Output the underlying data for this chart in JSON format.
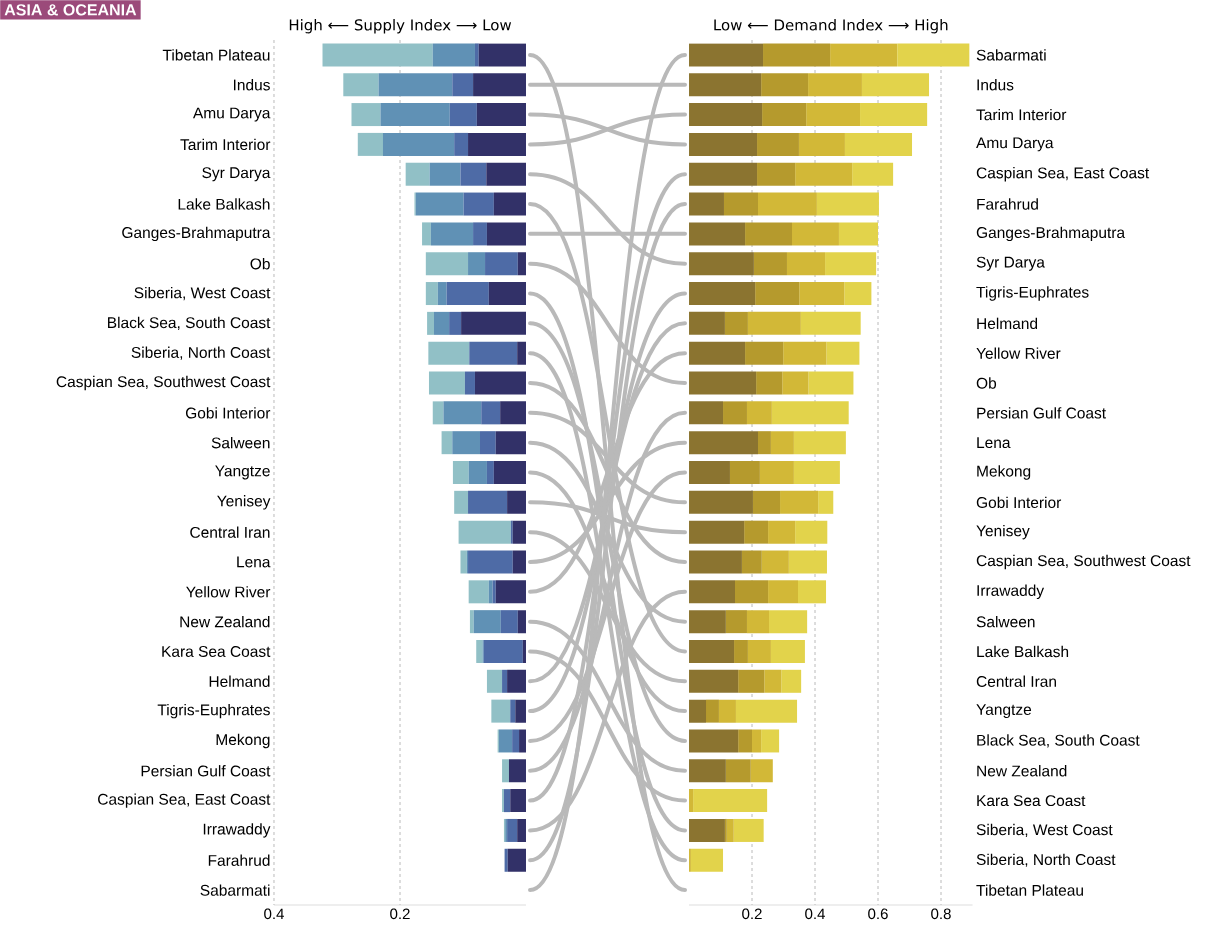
{
  "chart_data": [
    {
      "type": "bar",
      "orientation": "horizontal",
      "stacked": true,
      "title": "ASIA & OCEANIA",
      "xlabel": "High ⟵ Supply Index ⟶ Low",
      "categories": [
        "Tibetan Plateau",
        "Indus",
        "Amu Darya",
        "Tarim Interior",
        "Syr Darya",
        "Lake Balkash",
        "Ganges-Brahmaputra",
        "Ob",
        "Siberia, West Coast",
        "Black Sea, South Coast",
        "Siberia, North Coast",
        "Caspian Sea, Southwest Coast",
        "Gobi Interior",
        "Salween",
        "Yangtze",
        "Yenisey",
        "Central Iran",
        "Lena",
        "Yellow River",
        "New Zealand",
        "Kara Sea Coast",
        "Helmand",
        "Tigris-Euphrates",
        "Mekong",
        "Persian Gulf Coast",
        "Caspian Sea, East Coast",
        "Irrawaddy",
        "Farahrud",
        "Sabarmati"
      ],
      "series": [
        {
          "color": "#323168",
          "values": [
            0.075,
            0.084,
            0.078,
            0.092,
            0.063,
            0.051,
            0.062,
            0.013,
            0.059,
            0.103,
            0.014,
            0.081,
            0.041,
            0.048,
            0.051,
            0.03,
            0.021,
            0.021,
            0.048,
            0.013,
            0.005,
            0.03,
            0.017,
            0.011,
            0.027,
            0.025,
            0.014,
            0.029,
            0
          ]
        },
        {
          "color": "#4e6ba6",
          "values": [
            0.006,
            0.033,
            0.043,
            0.022,
            0.041,
            0.048,
            0.022,
            0.052,
            0.067,
            0.019,
            0.076,
            0.016,
            0.03,
            0.025,
            0.011,
            0.062,
            0.003,
            0.071,
            0.005,
            0.027,
            0.062,
            0.008,
            0.008,
            0.011,
            0,
            0.01,
            0.016,
            0.005,
            0
          ]
        },
        {
          "color": "#6091b5",
          "values": [
            0.067,
            0.117,
            0.11,
            0.113,
            0.049,
            0.076,
            0.067,
            0.027,
            0.014,
            0.024,
            0,
            0,
            0.06,
            0.044,
            0.029,
            0,
            0,
            0.002,
            0.006,
            0.043,
            0.002,
            0,
            0,
            0.021,
            0,
            0,
            0.003,
            0,
            0
          ]
        },
        {
          "color": "#91c0c6",
          "values": [
            0.175,
            0.056,
            0.046,
            0.04,
            0.038,
            0.002,
            0.014,
            0.067,
            0.019,
            0.011,
            0.065,
            0.057,
            0.017,
            0.017,
            0.025,
            0.022,
            0.083,
            0.01,
            0.032,
            0.006,
            0.01,
            0.024,
            0.03,
            0.002,
            0.011,
            0.003,
            0.002,
            0,
            null
          ]
        }
      ],
      "xlim": [
        0.4,
        0
      ],
      "xticks": [
        0.4,
        0.2
      ],
      "grid": "x"
    },
    {
      "type": "bar",
      "orientation": "horizontal",
      "stacked": true,
      "xlabel": "Low ⟵ Demand Index ⟶ High",
      "categories": [
        "Sabarmati",
        "Indus",
        "Tarim Interior",
        "Amu Darya",
        "Caspian Sea, East Coast",
        "Farahrud",
        "Ganges-Brahmaputra",
        "Syr Darya",
        "Tigris-Euphrates",
        "Helmand",
        "Yellow River",
        "Ob",
        "Persian Gulf Coast",
        "Lena",
        "Mekong",
        "Gobi Interior",
        "Yenisey",
        "Caspian Sea, Southwest Coast",
        "Irrawaddy",
        "Salween",
        "Lake Balkash",
        "Central Iran",
        "Yangtze",
        "Black Sea, South Coast",
        "New Zealand",
        "Kara Sea Coast",
        "Siberia, West Coast",
        "Siberia, North Coast",
        "Tibetan Plateau"
      ],
      "series": [
        {
          "color": "#8b7430",
          "values": [
            0.235,
            0.229,
            0.232,
            0.216,
            0.216,
            0.111,
            0.178,
            0.206,
            0.21,
            0.114,
            0.178,
            0.213,
            0.108,
            0.219,
            0.13,
            0.203,
            0.175,
            0.168,
            0.146,
            0.117,
            0.143,
            0.156,
            0.054,
            0.156,
            0.117,
            0,
            0.114,
            0,
            0
          ]
        },
        {
          "color": "#b59a2d",
          "values": [
            0.213,
            0.149,
            0.14,
            0.133,
            0.121,
            0.108,
            0.149,
            0.105,
            0.14,
            0.073,
            0.121,
            0.083,
            0.076,
            0.041,
            0.095,
            0.086,
            0.076,
            0.063,
            0.105,
            0.067,
            0.044,
            0.083,
            0.041,
            0.044,
            0.079,
            0,
            0.006,
            0,
            0
          ]
        },
        {
          "color": "#d2b837",
          "values": [
            0.213,
            0.171,
            0.171,
            0.146,
            0.181,
            0.187,
            0.149,
            0.121,
            0.143,
            0.168,
            0.137,
            0.083,
            0.079,
            0.073,
            0.108,
            0.121,
            0.086,
            0.086,
            0.095,
            0.07,
            0.073,
            0.054,
            0.054,
            0.029,
            0.07,
            0.013,
            0.022,
            0.006,
            0
          ]
        },
        {
          "color": "#e2d34b",
          "values": [
            0.229,
            0.213,
            0.213,
            0.213,
            0.13,
            0.197,
            0.124,
            0.162,
            0.086,
            0.19,
            0.105,
            0.143,
            0.244,
            0.165,
            0.146,
            0.048,
            0.102,
            0.121,
            0.089,
            0.121,
            0.108,
            0.063,
            0.194,
            0.057,
            0,
            0.235,
            0.095,
            0.102,
            null
          ]
        }
      ],
      "xlim": [
        0,
        0.9
      ],
      "xticks": [
        0.2,
        0.4,
        0.6,
        0.8
      ],
      "grid": "x"
    }
  ]
}
